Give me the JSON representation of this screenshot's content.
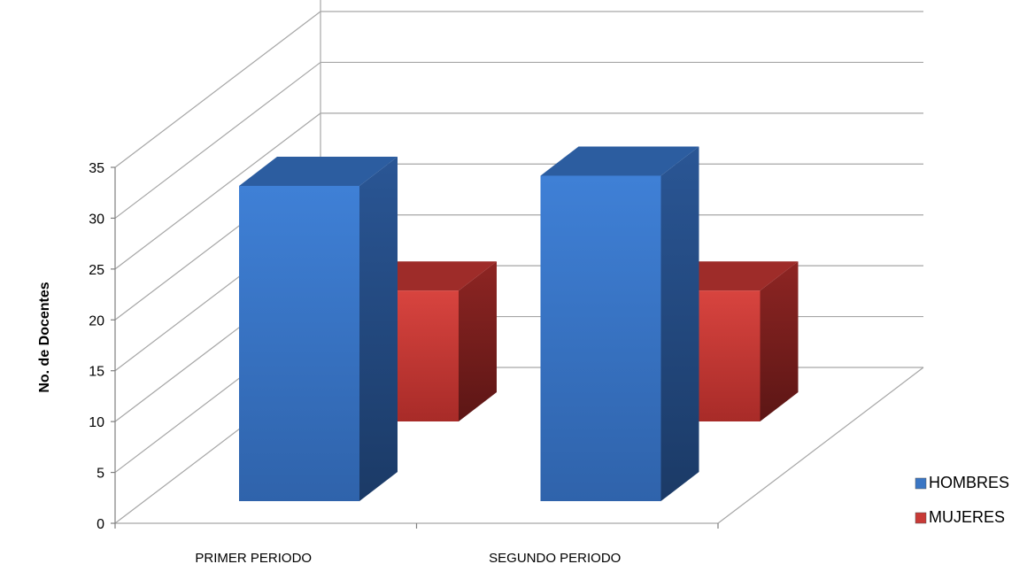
{
  "chart_data": {
    "type": "bar",
    "style": "3d-clustered-column",
    "categories": [
      "PRIMER PERIODO",
      "SEGUNDO PERIODO"
    ],
    "series": [
      {
        "name": "HOMBRES",
        "values": [
          31,
          32
        ],
        "color": "#3a76c4"
      },
      {
        "name": "MUJERES",
        "values": [
          14,
          14
        ],
        "color": "#c83a36"
      }
    ],
    "title": "",
    "xlabel": "",
    "ylabel": "No. de Docentes",
    "ylim": [
      0,
      35
    ],
    "yticks": [
      0,
      5,
      10,
      15,
      20,
      25,
      30,
      35
    ],
    "grid": true,
    "legend": "bottom-right"
  }
}
